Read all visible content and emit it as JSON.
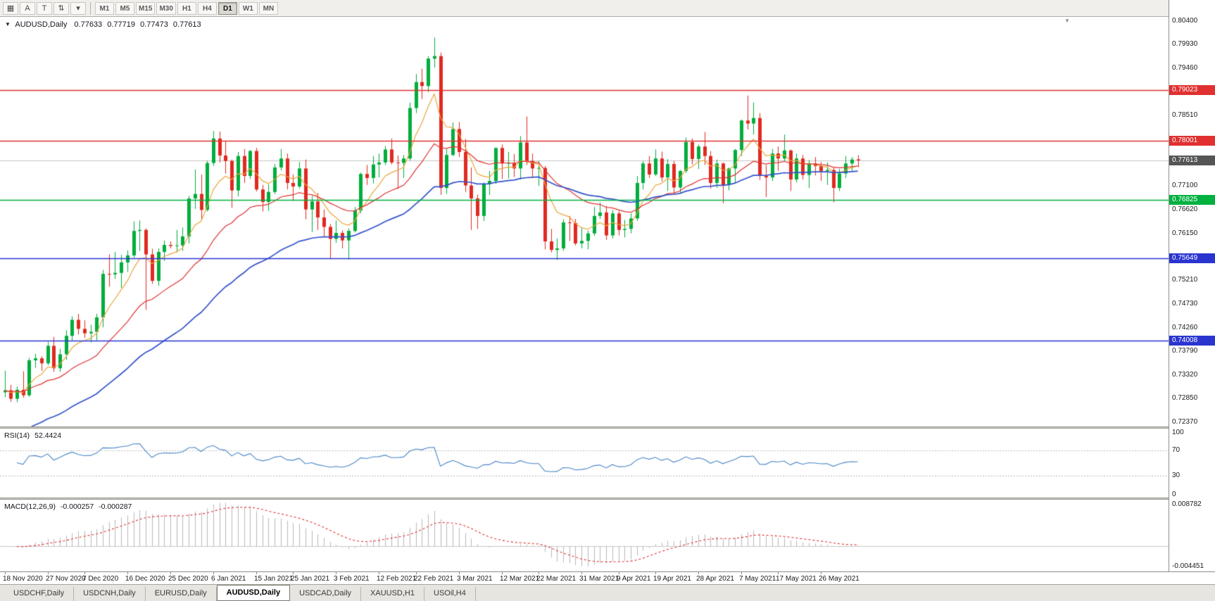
{
  "toolbar": {
    "tools": [
      {
        "name": "chart-window-icon",
        "glyph": "▦"
      },
      {
        "name": "annotate-text-tool",
        "glyph": "A"
      },
      {
        "name": "trendline-tool",
        "glyph": "T"
      },
      {
        "name": "scale-tool",
        "glyph": "⇅"
      },
      {
        "name": "tools-dropdown",
        "glyph": "▾"
      }
    ],
    "timeframes": [
      "M1",
      "M5",
      "M15",
      "M30",
      "H1",
      "H4",
      "D1",
      "W1",
      "MN"
    ],
    "active_timeframe": "D1"
  },
  "icons": {
    "collapse_arrow": "▼",
    "shift_marker": "▼"
  },
  "main_chart": {
    "symbol": "AUDUSD,Daily",
    "ohlc": {
      "open": "0.77633",
      "high": "0.77719",
      "low": "0.77473",
      "close": "0.77613"
    },
    "current_price": {
      "value": 0.77613,
      "label": "0.77613"
    },
    "levels": [
      {
        "value": 0.79023,
        "label": "0.79023",
        "color": "#e03030"
      },
      {
        "value": 0.78001,
        "label": "0.78001",
        "color": "#e03030"
      },
      {
        "value": 0.76825,
        "label": "0.76825",
        "color": "#00b140"
      },
      {
        "value": 0.75649,
        "label": "0.75649",
        "color": "#2a35d0"
      },
      {
        "value": 0.74008,
        "label": "0.74008",
        "color": "#2a35d0"
      }
    ],
    "price_axis_ticks": [
      "0.80400",
      "0.79930",
      "0.79460",
      "0.78990",
      "0.78510",
      "0.78040",
      "0.77570",
      "0.77100",
      "0.76620",
      "0.76150",
      "0.75680",
      "0.75210",
      "0.74730",
      "0.74260",
      "0.73790",
      "0.73320",
      "0.72850",
      "0.72370"
    ],
    "chart_data": {
      "type": "candlestick",
      "price_range": [
        0.7237,
        0.804
      ],
      "moving_averages": [
        {
          "name": "fast",
          "period": 7,
          "color": "#eda63b"
        },
        {
          "name": "medium",
          "period": 21,
          "color": "#e03030"
        },
        {
          "name": "slow",
          "period": 45,
          "color": "#3352cc"
        }
      ],
      "x_labels": [
        {
          "i": 0,
          "text": "18 Nov 2020"
        },
        {
          "i": 7,
          "text": "27 Nov 2020"
        },
        {
          "i": 13,
          "text": "7 Dec 2020"
        },
        {
          "i": 20,
          "text": "16 Dec 2020"
        },
        {
          "i": 27,
          "text": "25 Dec 2020"
        },
        {
          "i": 34,
          "text": "6 Jan 2021"
        },
        {
          "i": 41,
          "text": "15 Jan 2021"
        },
        {
          "i": 47,
          "text": "25 Jan 2021"
        },
        {
          "i": 54,
          "text": "3 Feb 2021"
        },
        {
          "i": 61,
          "text": "12 Feb 2021"
        },
        {
          "i": 67,
          "text": "22 Feb 2021"
        },
        {
          "i": 74,
          "text": "3 Mar 2021"
        },
        {
          "i": 81,
          "text": "12 Mar 2021"
        },
        {
          "i": 87,
          "text": "22 Mar 2021"
        },
        {
          "i": 94,
          "text": "31 Mar 2021"
        },
        {
          "i": 100,
          "text": "9 Apr 2021"
        },
        {
          "i": 106,
          "text": "19 Apr 2021"
        },
        {
          "i": 113,
          "text": "28 Apr 2021"
        },
        {
          "i": 120,
          "text": "7 May 2021"
        },
        {
          "i": 126,
          "text": "17 May 2021"
        },
        {
          "i": 133,
          "text": "26 May 2021"
        }
      ],
      "candles": [
        [
          0.7297,
          0.734,
          0.7287,
          0.7301
        ],
        [
          0.7301,
          0.7312,
          0.7278,
          0.7284
        ],
        [
          0.7284,
          0.7309,
          0.7277,
          0.7302
        ],
        [
          0.7302,
          0.7339,
          0.7286,
          0.7291
        ],
        [
          0.7291,
          0.7366,
          0.7288,
          0.7361
        ],
        [
          0.7361,
          0.7374,
          0.7346,
          0.7365
        ],
        [
          0.7365,
          0.7369,
          0.734,
          0.7355
        ],
        [
          0.7355,
          0.7398,
          0.7351,
          0.739
        ],
        [
          0.739,
          0.7408,
          0.7338,
          0.7345
        ],
        [
          0.7345,
          0.7384,
          0.7338,
          0.7373
        ],
        [
          0.7373,
          0.7421,
          0.7362,
          0.741
        ],
        [
          0.741,
          0.7449,
          0.74,
          0.7442
        ],
        [
          0.7442,
          0.7454,
          0.7413,
          0.7424
        ],
        [
          0.7424,
          0.7441,
          0.7406,
          0.7415
        ],
        [
          0.7415,
          0.7432,
          0.7397,
          0.7418
        ],
        [
          0.7418,
          0.7454,
          0.7401,
          0.7447
        ],
        [
          0.7447,
          0.7542,
          0.7427,
          0.7534
        ],
        [
          0.7534,
          0.7573,
          0.7508,
          0.7533
        ],
        [
          0.7533,
          0.7578,
          0.7524,
          0.7536
        ],
        [
          0.7536,
          0.7572,
          0.7506,
          0.7557
        ],
        [
          0.7557,
          0.7581,
          0.7538,
          0.7571
        ],
        [
          0.7571,
          0.7639,
          0.7566,
          0.762
        ],
        [
          0.762,
          0.7641,
          0.758,
          0.7622
        ],
        [
          0.7622,
          0.7625,
          0.7462,
          0.7573
        ],
        [
          0.7573,
          0.7584,
          0.7514,
          0.752
        ],
        [
          0.752,
          0.7585,
          0.751,
          0.7578
        ],
        [
          0.7578,
          0.7601,
          0.756,
          0.7592
        ],
        [
          0.7592,
          0.7599,
          0.7585,
          0.759
        ],
        [
          0.759,
          0.7622,
          0.7577,
          0.7591
        ],
        [
          0.7591,
          0.7627,
          0.758,
          0.7609
        ],
        [
          0.7609,
          0.769,
          0.7595,
          0.7685
        ],
        [
          0.7685,
          0.7743,
          0.7664,
          0.7694
        ],
        [
          0.7694,
          0.7733,
          0.7642,
          0.7662
        ],
        [
          0.7662,
          0.776,
          0.7659,
          0.7756
        ],
        [
          0.7756,
          0.782,
          0.775,
          0.7805
        ],
        [
          0.7805,
          0.7819,
          0.7757,
          0.7771
        ],
        [
          0.7771,
          0.78,
          0.7735,
          0.776
        ],
        [
          0.776,
          0.7763,
          0.7666,
          0.7701
        ],
        [
          0.7701,
          0.7778,
          0.7689,
          0.777
        ],
        [
          0.777,
          0.7784,
          0.7716,
          0.773
        ],
        [
          0.773,
          0.7782,
          0.7724,
          0.778
        ],
        [
          0.778,
          0.7786,
          0.7699,
          0.7703
        ],
        [
          0.7703,
          0.7712,
          0.7659,
          0.7678
        ],
        [
          0.7678,
          0.7713,
          0.766,
          0.7698
        ],
        [
          0.7698,
          0.7754,
          0.7694,
          0.7747
        ],
        [
          0.7747,
          0.7784,
          0.7741,
          0.7765
        ],
        [
          0.7765,
          0.7775,
          0.7703,
          0.7716
        ],
        [
          0.7716,
          0.7733,
          0.768,
          0.7709
        ],
        [
          0.7709,
          0.7758,
          0.7705,
          0.7745
        ],
        [
          0.7745,
          0.7763,
          0.7643,
          0.7663
        ],
        [
          0.7663,
          0.769,
          0.7618,
          0.7679
        ],
        [
          0.7679,
          0.7696,
          0.7622,
          0.7647
        ],
        [
          0.7647,
          0.7663,
          0.7607,
          0.7628
        ],
        [
          0.7628,
          0.7634,
          0.7564,
          0.7604
        ],
        [
          0.7604,
          0.7641,
          0.7596,
          0.7616
        ],
        [
          0.7616,
          0.7621,
          0.7585,
          0.7601
        ],
        [
          0.7601,
          0.7625,
          0.7563,
          0.762
        ],
        [
          0.762,
          0.7668,
          0.7617,
          0.7661
        ],
        [
          0.7661,
          0.7737,
          0.7655,
          0.7734
        ],
        [
          0.7734,
          0.7752,
          0.7712,
          0.7726
        ],
        [
          0.7726,
          0.777,
          0.7715,
          0.7753
        ],
        [
          0.7753,
          0.7775,
          0.7727,
          0.7757
        ],
        [
          0.7757,
          0.779,
          0.7752,
          0.7783
        ],
        [
          0.7783,
          0.7805,
          0.7753,
          0.7757
        ],
        [
          0.7757,
          0.7771,
          0.7704,
          0.7756
        ],
        [
          0.7756,
          0.7772,
          0.7726,
          0.7765
        ],
        [
          0.7765,
          0.7877,
          0.7761,
          0.7866
        ],
        [
          0.7866,
          0.7934,
          0.7856,
          0.7918
        ],
        [
          0.7918,
          0.7945,
          0.7884,
          0.791
        ],
        [
          0.791,
          0.797,
          0.7898,
          0.7965
        ],
        [
          0.7965,
          0.8007,
          0.7947,
          0.797
        ],
        [
          0.797,
          0.7977,
          0.7692,
          0.7706
        ],
        [
          0.7706,
          0.7784,
          0.7694,
          0.7772
        ],
        [
          0.7772,
          0.7837,
          0.777,
          0.7824
        ],
        [
          0.7824,
          0.7838,
          0.7768,
          0.7778
        ],
        [
          0.7778,
          0.7804,
          0.7698,
          0.7711
        ],
        [
          0.7711,
          0.7747,
          0.7622,
          0.7685
        ],
        [
          0.7685,
          0.7693,
          0.7624,
          0.765
        ],
        [
          0.765,
          0.7717,
          0.764,
          0.7714
        ],
        [
          0.7714,
          0.774,
          0.7692,
          0.772
        ],
        [
          0.772,
          0.7787,
          0.7714,
          0.7786
        ],
        [
          0.7786,
          0.7793,
          0.7724,
          0.7755
        ],
        [
          0.7755,
          0.7778,
          0.7725,
          0.7756
        ],
        [
          0.7756,
          0.7774,
          0.7728,
          0.7745
        ],
        [
          0.7745,
          0.781,
          0.7723,
          0.7797
        ],
        [
          0.7797,
          0.7849,
          0.7752,
          0.776
        ],
        [
          0.776,
          0.7775,
          0.7726,
          0.7745
        ],
        [
          0.7745,
          0.776,
          0.771,
          0.7746
        ],
        [
          0.7746,
          0.775,
          0.7583,
          0.7599
        ],
        [
          0.7599,
          0.7624,
          0.7577,
          0.7582
        ],
        [
          0.7582,
          0.7605,
          0.7562,
          0.7585
        ],
        [
          0.7585,
          0.7643,
          0.758,
          0.7637
        ],
        [
          0.7637,
          0.765,
          0.76,
          0.7636
        ],
        [
          0.7636,
          0.7644,
          0.7591,
          0.7595
        ],
        [
          0.7595,
          0.7627,
          0.7585,
          0.76
        ],
        [
          0.76,
          0.7621,
          0.7583,
          0.7615
        ],
        [
          0.7615,
          0.7668,
          0.761,
          0.765
        ],
        [
          0.765,
          0.7677,
          0.7644,
          0.7657
        ],
        [
          0.7657,
          0.767,
          0.7602,
          0.7611
        ],
        [
          0.7611,
          0.7662,
          0.7605,
          0.7655
        ],
        [
          0.7655,
          0.766,
          0.7611,
          0.7622
        ],
        [
          0.7622,
          0.7642,
          0.7607,
          0.7624
        ],
        [
          0.7624,
          0.7655,
          0.7615,
          0.7645
        ],
        [
          0.7645,
          0.773,
          0.764,
          0.7716
        ],
        [
          0.7716,
          0.776,
          0.7703,
          0.7755
        ],
        [
          0.7755,
          0.777,
          0.7726,
          0.7733
        ],
        [
          0.7733,
          0.7783,
          0.773,
          0.7765
        ],
        [
          0.7765,
          0.7779,
          0.7719,
          0.7727
        ],
        [
          0.7727,
          0.7764,
          0.77,
          0.7754
        ],
        [
          0.7754,
          0.776,
          0.7694,
          0.7707
        ],
        [
          0.7707,
          0.7742,
          0.7696,
          0.774
        ],
        [
          0.774,
          0.7807,
          0.7736,
          0.7798
        ],
        [
          0.7798,
          0.7805,
          0.7753,
          0.7764
        ],
        [
          0.7764,
          0.7793,
          0.7744,
          0.7789
        ],
        [
          0.7789,
          0.7818,
          0.7752,
          0.777
        ],
        [
          0.777,
          0.778,
          0.7705,
          0.7716
        ],
        [
          0.7716,
          0.7763,
          0.7706,
          0.7755
        ],
        [
          0.7755,
          0.7757,
          0.7675,
          0.7712
        ],
        [
          0.7712,
          0.7747,
          0.7701,
          0.7745
        ],
        [
          0.7745,
          0.7784,
          0.7715,
          0.7782
        ],
        [
          0.7782,
          0.7843,
          0.777,
          0.7841
        ],
        [
          0.7841,
          0.7891,
          0.7823,
          0.7835
        ],
        [
          0.7835,
          0.7877,
          0.7813,
          0.7846
        ],
        [
          0.7846,
          0.7856,
          0.7722,
          0.773
        ],
        [
          0.773,
          0.7752,
          0.7688,
          0.7727
        ],
        [
          0.7727,
          0.7784,
          0.772,
          0.7775
        ],
        [
          0.7775,
          0.7789,
          0.774,
          0.7765
        ],
        [
          0.7765,
          0.7813,
          0.776,
          0.7781
        ],
        [
          0.7781,
          0.7783,
          0.77,
          0.7723
        ],
        [
          0.7723,
          0.7775,
          0.7717,
          0.7765
        ],
        [
          0.7765,
          0.7772,
          0.7723,
          0.7732
        ],
        [
          0.7732,
          0.7762,
          0.7706,
          0.7755
        ],
        [
          0.7755,
          0.7768,
          0.7731,
          0.775
        ],
        [
          0.775,
          0.7758,
          0.772,
          0.774
        ],
        [
          0.774,
          0.7757,
          0.7712,
          0.7742
        ],
        [
          0.7742,
          0.7747,
          0.7677,
          0.7706
        ],
        [
          0.7706,
          0.7744,
          0.77,
          0.7735
        ],
        [
          0.7735,
          0.777,
          0.7726,
          0.7755
        ],
        [
          0.7755,
          0.7768,
          0.774,
          0.7763
        ],
        [
          0.77633,
          0.77719,
          0.77473,
          0.77613
        ]
      ]
    }
  },
  "rsi_panel": {
    "name": "RSI(14)",
    "value": "52.4424",
    "axis_ticks": [
      "100",
      "70",
      "30",
      "0"
    ],
    "level_lines": [
      70,
      30
    ],
    "range": [
      0,
      100
    ],
    "line_color": "#4a86c8"
  },
  "macd_panel": {
    "name": "MACD(12,26,9)",
    "main_value": "-0.000257",
    "signal_value": "-0.000287",
    "axis_max": "0.008782",
    "axis_min": "-0.004451",
    "hist_color": "#b8b8b8",
    "signal_color": "#e03030"
  },
  "tabs": {
    "items": [
      {
        "label": "USDCHF,Daily",
        "active": false
      },
      {
        "label": "USDCNH,Daily",
        "active": false
      },
      {
        "label": "EURUSD,Daily",
        "active": false
      },
      {
        "label": "AUDUSD,Daily",
        "active": true
      },
      {
        "label": "USDCAD,Daily",
        "active": false
      },
      {
        "label": "XAUUSD,H1",
        "active": false
      },
      {
        "label": "USOil,H4",
        "active": false
      }
    ]
  },
  "colors": {
    "bull": "#00ad3c",
    "bear": "#e02a20",
    "bid_line": "#c4c4c4",
    "current_tag_bg": "#555555",
    "axis_text": "#1a1a1a"
  }
}
